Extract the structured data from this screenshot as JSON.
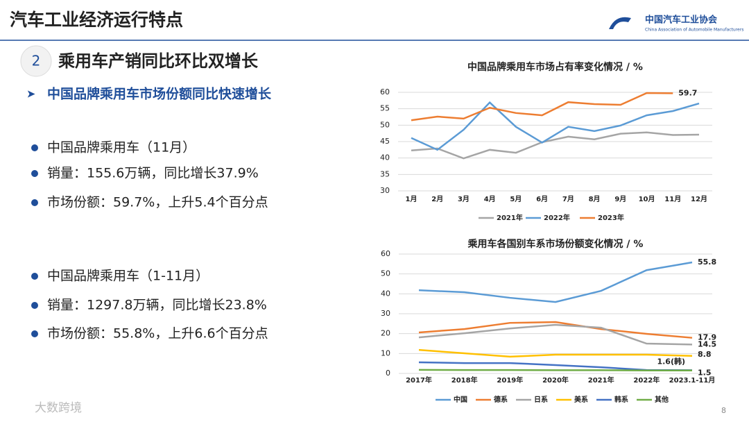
{
  "slide": {
    "title": "汽车工业经济运行特点",
    "logo": "中国汽车工业协会",
    "logo_sub": "China Association of Automobile Manufacturers",
    "section_number": "2",
    "heading": "乘用车产销同比环比双增长",
    "subheading": "中国品牌乘用车市场份额同比快速增长",
    "bullets": [
      "中国品牌乘用车（11月）",
      "销量：155.6万辆，同比增长37.9%",
      "市场份额：59.7%，上升5.4个百分点",
      "中国品牌乘用车（1-11月）",
      "销量：1297.8万辆，同比增长23.8%",
      "市场份额：55.8%，上升6.6个百分点"
    ],
    "page_number": "8",
    "watermark": "大数跨境"
  },
  "chart_data": [
    {
      "type": "line",
      "title": "中国品牌乘用车市场占有率变化情况 / %",
      "categories": [
        "1月",
        "2月",
        "3月",
        "4月",
        "5月",
        "6月",
        "7月",
        "8月",
        "9月",
        "10月",
        "11月",
        "12月"
      ],
      "ylim": [
        30,
        60
      ],
      "yticks": [
        30,
        35,
        40,
        45,
        50,
        55,
        60
      ],
      "series": [
        {
          "name": "2021年",
          "color": "#a5a5a5",
          "values": [
            42.3,
            42.9,
            39.9,
            42.5,
            41.6,
            44.8,
            46.5,
            45.7,
            47.4,
            47.8,
            47.0,
            47.1
          ]
        },
        {
          "name": "2022年",
          "color": "#5b9bd5",
          "values": [
            46.1,
            42.5,
            48.6,
            56.9,
            49.5,
            44.7,
            49.5,
            48.2,
            49.9,
            53.0,
            54.3,
            56.6
          ]
        },
        {
          "name": "2023年",
          "color": "#ed7d31",
          "values": [
            51.5,
            52.6,
            52.0,
            55.3,
            53.7,
            53.0,
            57.0,
            56.4,
            56.2,
            59.8,
            59.7,
            null
          ],
          "value_labels": [
            null,
            null,
            null,
            null,
            null,
            null,
            null,
            null,
            null,
            null,
            "59.7",
            null
          ]
        }
      ]
    },
    {
      "type": "line",
      "title": "乘用车各国别车系市场份额变化情况 / %",
      "categories": [
        "2017年",
        "2018年",
        "2019年",
        "2020年",
        "2021年",
        "2022年",
        "2023.1-11月"
      ],
      "ylim": [
        0,
        60
      ],
      "yticks": [
        0,
        10,
        20,
        30,
        40,
        50,
        60
      ],
      "series": [
        {
          "name": "中国",
          "color": "#5b9bd5",
          "values": [
            41.8,
            40.8,
            38.0,
            35.9,
            41.5,
            51.9,
            55.8
          ],
          "value_labels": [
            null,
            null,
            null,
            null,
            null,
            null,
            "55.8"
          ]
        },
        {
          "name": "德系",
          "color": "#ed7d31",
          "values": [
            20.6,
            22.3,
            25.4,
            25.8,
            22.3,
            19.9,
            17.9
          ],
          "value_labels": [
            null,
            null,
            null,
            null,
            null,
            null,
            "17.9"
          ]
        },
        {
          "name": "日系",
          "color": "#a5a5a5",
          "values": [
            18.1,
            20.2,
            22.6,
            24.4,
            23.0,
            15.0,
            14.5
          ],
          "value_labels": [
            null,
            null,
            null,
            null,
            null,
            null,
            "14.5"
          ]
        },
        {
          "name": "美系",
          "color": "#ffc000",
          "values": [
            11.8,
            10.1,
            8.4,
            9.4,
            9.4,
            9.4,
            8.8
          ],
          "value_labels": [
            null,
            null,
            null,
            null,
            null,
            null,
            "8.8"
          ]
        },
        {
          "name": "韩系",
          "color": "#4472c4",
          "values": [
            5.6,
            5.2,
            5.2,
            4.2,
            3.1,
            1.7,
            1.6
          ],
          "value_labels": [
            null,
            null,
            null,
            null,
            null,
            null,
            "1.6(韩)"
          ]
        },
        {
          "name": "其他",
          "color": "#70ad47",
          "values": [
            1.8,
            1.7,
            1.7,
            1.6,
            1.6,
            1.5,
            1.5
          ],
          "value_labels": [
            null,
            null,
            null,
            null,
            null,
            null,
            "1.5"
          ]
        }
      ]
    }
  ]
}
